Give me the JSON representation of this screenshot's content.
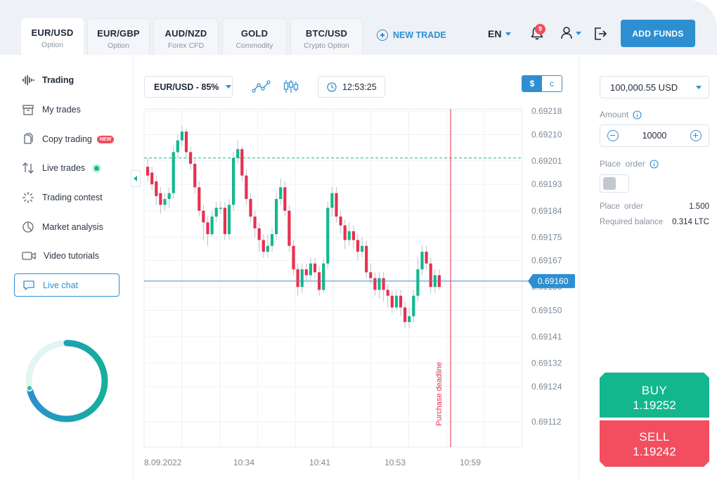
{
  "tabs": [
    {
      "name": "EUR/USD",
      "sub": "Option",
      "active": true
    },
    {
      "name": "EUR/GBP",
      "sub": "Option",
      "active": false
    },
    {
      "name": "AUD/NZD",
      "sub": "Forex CFD",
      "active": false
    },
    {
      "name": "GOLD",
      "sub": "Commodity",
      "active": false
    },
    {
      "name": "BTC/USD",
      "sub": "Crypto Option",
      "active": false
    }
  ],
  "header": {
    "new_trade": "NEW TRADE",
    "language": "EN",
    "notifications_count": "9",
    "add_funds": "ADD FUNDS"
  },
  "sidebar": {
    "items": [
      {
        "label": "Trading",
        "icon": "waveform-icon"
      },
      {
        "label": "My trades",
        "icon": "archive-icon"
      },
      {
        "label": "Copy trading",
        "icon": "copy-icon",
        "badge": "NEW"
      },
      {
        "label": "Live trades",
        "icon": "arrows-updown-icon"
      },
      {
        "label": "Trading contest",
        "icon": "burst-icon"
      },
      {
        "label": "Market analysis",
        "icon": "pie-icon"
      },
      {
        "label": "Video tutorials",
        "icon": "video-icon"
      },
      {
        "label": "Live chat",
        "icon": "chat-icon"
      }
    ],
    "progress_fraction": 0.72
  },
  "toolbar": {
    "asset_select": "EUR/USD - 85%",
    "time": "12:53:25",
    "currency_on": "$",
    "currency_off": "c"
  },
  "chart_data": {
    "type": "candlestick",
    "x_labels": [
      "8.09.2022",
      "10:34",
      "10:41",
      "10:53",
      "10:59"
    ],
    "y_ticks": [
      "0.69218",
      "0.69210",
      "0.69201",
      "0.69193",
      "0.69184",
      "0.69175",
      "0.69167",
      "0.69158",
      "0.69150",
      "0.69141",
      "0.69132",
      "0.69124",
      "0.69112"
    ],
    "y_tick_values": [
      0.69218,
      0.6921,
      0.69201,
      0.69193,
      0.69184,
      0.69175,
      0.69167,
      0.69158,
      0.6915,
      0.69141,
      0.69132,
      0.69124,
      0.69112
    ],
    "ylim": [
      0.69102,
      0.69222
    ],
    "current_price": "0.69160",
    "current_price_value": 0.6916,
    "reference_level_value": 0.69202,
    "deadline_label": "Purchase deadline",
    "up_color": "#14b78d",
    "down_color": "#e8304f",
    "candles": [
      [
        0.69199,
        0.69196,
        0.69202,
        0.69194
      ],
      [
        0.69197,
        0.69193,
        0.69199,
        0.69191
      ],
      [
        0.69194,
        0.69189,
        0.69196,
        0.69186
      ],
      [
        0.6919,
        0.69186,
        0.69192,
        0.69183
      ],
      [
        0.69186,
        0.69188,
        0.6919,
        0.69184
      ],
      [
        0.69188,
        0.6919,
        0.69192,
        0.69185
      ],
      [
        0.6919,
        0.69204,
        0.69206,
        0.69188
      ],
      [
        0.69204,
        0.69208,
        0.6921,
        0.69202
      ],
      [
        0.69208,
        0.69211,
        0.69213,
        0.69206
      ],
      [
        0.69211,
        0.69204,
        0.69212,
        0.69202
      ],
      [
        0.69204,
        0.692,
        0.69206,
        0.69198
      ],
      [
        0.692,
        0.69192,
        0.69202,
        0.6919
      ],
      [
        0.69192,
        0.69184,
        0.69194,
        0.69182
      ],
      [
        0.69184,
        0.6918,
        0.69186,
        0.69174
      ],
      [
        0.6918,
        0.69176,
        0.69182,
        0.69172
      ],
      [
        0.69176,
        0.69182,
        0.69184,
        0.69175
      ],
      [
        0.69182,
        0.69185,
        0.69187,
        0.6918
      ],
      [
        0.69185,
        0.69185,
        0.69187,
        0.69183
      ],
      [
        0.69185,
        0.69176,
        0.69187,
        0.69174
      ],
      [
        0.69176,
        0.69186,
        0.69188,
        0.69174
      ],
      [
        0.69186,
        0.69202,
        0.69204,
        0.69184
      ],
      [
        0.69202,
        0.69205,
        0.69208,
        0.692
      ],
      [
        0.69205,
        0.69196,
        0.69206,
        0.69194
      ],
      [
        0.69196,
        0.69188,
        0.69198,
        0.69186
      ],
      [
        0.69188,
        0.69182,
        0.6919,
        0.6918
      ],
      [
        0.69182,
        0.69178,
        0.69184,
        0.69175
      ],
      [
        0.69178,
        0.69174,
        0.6918,
        0.6917
      ],
      [
        0.69174,
        0.6917,
        0.69176,
        0.69168
      ],
      [
        0.6917,
        0.69172,
        0.69176,
        0.69168
      ],
      [
        0.69172,
        0.69176,
        0.69178,
        0.6917
      ],
      [
        0.69176,
        0.69188,
        0.6919,
        0.69174
      ],
      [
        0.69188,
        0.69192,
        0.69195,
        0.69186
      ],
      [
        0.69192,
        0.69184,
        0.69194,
        0.69182
      ],
      [
        0.69184,
        0.69172,
        0.69186,
        0.6917
      ],
      [
        0.69172,
        0.69164,
        0.69174,
        0.69162
      ],
      [
        0.69164,
        0.69158,
        0.69166,
        0.69155
      ],
      [
        0.69158,
        0.69164,
        0.69166,
        0.69156
      ],
      [
        0.69164,
        0.69162,
        0.69166,
        0.6916
      ],
      [
        0.69162,
        0.69166,
        0.69168,
        0.6916
      ],
      [
        0.69166,
        0.69163,
        0.69168,
        0.69161
      ],
      [
        0.69163,
        0.69157,
        0.69165,
        0.69155
      ],
      [
        0.69157,
        0.69166,
        0.69168,
        0.69156
      ],
      [
        0.69166,
        0.69185,
        0.69187,
        0.69164
      ],
      [
        0.69185,
        0.6919,
        0.69192,
        0.69182
      ],
      [
        0.6919,
        0.69182,
        0.69192,
        0.6918
      ],
      [
        0.69182,
        0.69179,
        0.69184,
        0.69176
      ],
      [
        0.69179,
        0.69174,
        0.69181,
        0.69171
      ],
      [
        0.69174,
        0.69177,
        0.6918,
        0.69172
      ],
      [
        0.69177,
        0.69174,
        0.69179,
        0.69171
      ],
      [
        0.69174,
        0.6917,
        0.69176,
        0.69167
      ],
      [
        0.6917,
        0.69172,
        0.69175,
        0.69168
      ],
      [
        0.69172,
        0.69163,
        0.69174,
        0.69161
      ],
      [
        0.69163,
        0.69161,
        0.69166,
        0.69159
      ],
      [
        0.69161,
        0.69157,
        0.69163,
        0.69155
      ],
      [
        0.69157,
        0.69161,
        0.69163,
        0.69154
      ],
      [
        0.69161,
        0.69157,
        0.69163,
        0.69153
      ],
      [
        0.69157,
        0.69155,
        0.69159,
        0.69151
      ],
      [
        0.69155,
        0.69151,
        0.69157,
        0.69149
      ],
      [
        0.69151,
        0.69155,
        0.69157,
        0.6915
      ],
      [
        0.69155,
        0.69151,
        0.69157,
        0.69148
      ],
      [
        0.69151,
        0.69146,
        0.69153,
        0.69144
      ],
      [
        0.69146,
        0.69148,
        0.69151,
        0.69144
      ],
      [
        0.69148,
        0.69155,
        0.69157,
        0.69146
      ],
      [
        0.69155,
        0.69164,
        0.69168,
        0.69153
      ],
      [
        0.69164,
        0.6917,
        0.69172,
        0.69162
      ],
      [
        0.6917,
        0.69166,
        0.69172,
        0.69164
      ],
      [
        0.69166,
        0.69158,
        0.69168,
        0.69156
      ],
      [
        0.69158,
        0.69162,
        0.69164,
        0.69156
      ],
      [
        0.69162,
        0.69158,
        0.69164,
        0.69157
      ]
    ]
  },
  "right_panel": {
    "balance": "100,000.55 USD",
    "amount_label": "Amount",
    "amount_value": "10000",
    "place_order_label": "Place  order",
    "order_rows": [
      {
        "key": "Place  order",
        "value": "1.500"
      },
      {
        "key": "Required balance",
        "value": "0.314 LTC"
      }
    ],
    "buy_label": "BUY",
    "buy_price": "1.19252",
    "sell_label": "SELL",
    "sell_price": "1.19242"
  }
}
